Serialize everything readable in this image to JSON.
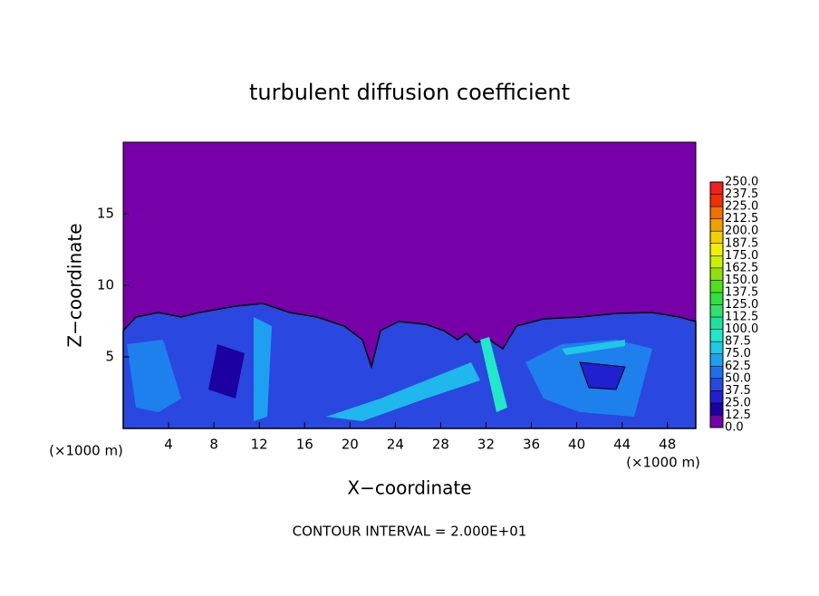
{
  "chart_data": {
    "type": "contour",
    "title": "turbulent diffusion coefficient",
    "xlabel": "X−coordinate",
    "ylabel": "Z−coordinate",
    "x_unit_labels": [
      "(×1000 m)",
      "(×1000 m)"
    ],
    "footnote": "CONTOUR INTERVAL = 2.000E+01",
    "xlim": [
      0,
      50.5
    ],
    "ylim": [
      0,
      20
    ],
    "xticks": [
      4,
      8,
      12,
      16,
      20,
      24,
      28,
      32,
      36,
      40,
      44,
      48
    ],
    "yticks": [
      5,
      10,
      15
    ],
    "colorbar": {
      "levels": [
        {
          "value": 0,
          "label": "0.0"
        },
        {
          "value": 12.5,
          "label": "12.5"
        },
        {
          "value": 25,
          "label": "25.0"
        },
        {
          "value": 37.5,
          "label": "37.5"
        },
        {
          "value": 50,
          "label": "50.0"
        },
        {
          "value": 62.5,
          "label": "62.5"
        },
        {
          "value": 75,
          "label": "75.0"
        },
        {
          "value": 87.5,
          "label": "87.5"
        },
        {
          "value": 100,
          "label": "100.0"
        },
        {
          "value": 112.5,
          "label": "112.5"
        },
        {
          "value": 125,
          "label": "125.0"
        },
        {
          "value": 137.5,
          "label": "137.5"
        },
        {
          "value": 150,
          "label": "150.0"
        },
        {
          "value": 162.5,
          "label": "162.5"
        },
        {
          "value": 175,
          "label": "175.0"
        },
        {
          "value": 187.5,
          "label": "187.5"
        },
        {
          "value": 200,
          "label": "200.0"
        },
        {
          "value": 212.5,
          "label": "212.5"
        },
        {
          "value": 225,
          "label": "225.0"
        },
        {
          "value": 237.5,
          "label": "237.5"
        },
        {
          "value": 250,
          "label": "250.0"
        }
      ],
      "colors": [
        "#7800a8",
        "#1c00a0",
        "#2020d0",
        "#2848e0",
        "#1e70e8",
        "#1ea0f0",
        "#20c8e8",
        "#20e8c8",
        "#20e0a0",
        "#30e070",
        "#30e040",
        "#50e020",
        "#90e010",
        "#c8f000",
        "#f0f000",
        "#f0d000",
        "#f0a000",
        "#f07000",
        "#f03000",
        "#f02020",
        "#f08080"
      ]
    }
  }
}
